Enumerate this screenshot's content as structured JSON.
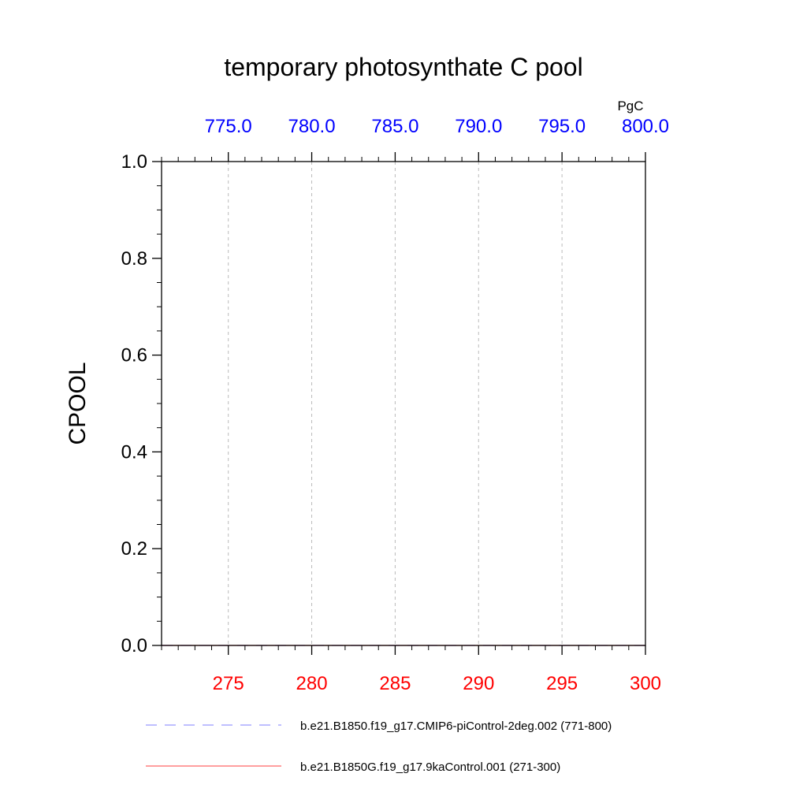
{
  "chart_data": {
    "type": "line",
    "title": "temporary photosynthate C pool",
    "ylabel": "CPOOL",
    "top_axis_units": "PgC",
    "ylim": [
      0.0,
      1.0
    ],
    "yticks": [
      "0.0",
      "0.2",
      "0.4",
      "0.6",
      "0.8",
      "1.0"
    ],
    "bottom_axis": {
      "range": [
        271,
        300
      ],
      "ticks": [
        "275",
        "280",
        "285",
        "290",
        "295",
        "300"
      ],
      "color": "#ff0000"
    },
    "top_axis": {
      "range": [
        771,
        800
      ],
      "ticks": [
        "775.0",
        "780.0",
        "785.0",
        "790.0",
        "795.0",
        "800.0"
      ],
      "color": "#0000ff"
    },
    "grid": "vertical dashed",
    "legend_placement": "bottom",
    "series": [
      {
        "name": "b.e21.B1850.f19_g17.CMIP6-piControl-2deg.002 (771-800)",
        "color": "#9999ff",
        "dash": "dashed",
        "axis": "top",
        "x": [
          771,
          800
        ],
        "values": [
          0.0,
          0.0
        ]
      },
      {
        "name": "b.e21.B1850G.f19_g17.9kaControl.001 (271-300)",
        "color": "#ff6666",
        "dash": "solid",
        "axis": "bottom",
        "x": [
          271,
          300
        ],
        "values": [
          0.0,
          0.0
        ]
      }
    ]
  }
}
